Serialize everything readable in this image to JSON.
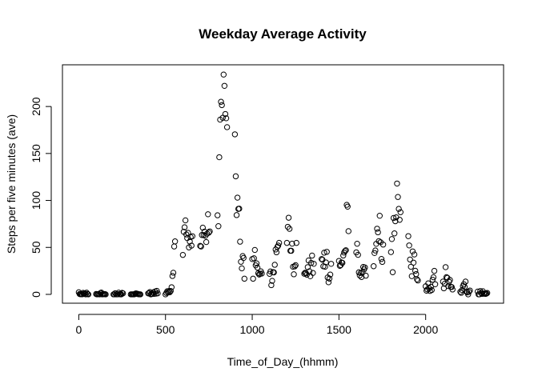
{
  "chart_data": {
    "type": "scatter",
    "title": "Weekday Average Activity",
    "xlabel": "Time_of_Day_(hhmm)",
    "ylabel": "Steps per five minutes (ave)",
    "xlim": [
      -94.2,
      2449.2
    ],
    "ylim": [
      -9.4,
      244.4
    ],
    "xticks": [
      0,
      500,
      1000,
      1500,
      2000
    ],
    "yticks": [
      0,
      50,
      100,
      150,
      200
    ],
    "grid": false,
    "legend": "none",
    "marker": "open-circle",
    "color": "#000000",
    "points": [
      [
        0,
        2.2
      ],
      [
        5,
        0.4
      ],
      [
        10,
        0.2
      ],
      [
        15,
        0.2
      ],
      [
        20,
        0.1
      ],
      [
        25,
        1.6
      ],
      [
        30,
        0.6
      ],
      [
        35,
        1.0
      ],
      [
        40,
        0.0
      ],
      [
        45,
        1.8
      ],
      [
        50,
        0.4
      ],
      [
        55,
        0.0
      ],
      [
        100,
        0.4
      ],
      [
        105,
        0.0
      ],
      [
        110,
        0.2
      ],
      [
        115,
        0.4
      ],
      [
        120,
        0.0
      ],
      [
        125,
        1.4
      ],
      [
        130,
        1.9
      ],
      [
        135,
        0.0
      ],
      [
        140,
        0.2
      ],
      [
        145,
        0.3
      ],
      [
        150,
        0.3
      ],
      [
        155,
        0.0
      ],
      [
        200,
        0.0
      ],
      [
        205,
        0.0
      ],
      [
        210,
        1.2
      ],
      [
        215,
        0.0
      ],
      [
        220,
        0.0
      ],
      [
        225,
        0.1
      ],
      [
        230,
        1.8
      ],
      [
        235,
        0.3
      ],
      [
        240,
        0.0
      ],
      [
        245,
        0.0
      ],
      [
        250,
        1.6
      ],
      [
        255,
        1.1
      ],
      [
        300,
        0.0
      ],
      [
        305,
        0.0
      ],
      [
        310,
        0.0
      ],
      [
        315,
        0.0
      ],
      [
        320,
        0.0
      ],
      [
        325,
        0.7
      ],
      [
        330,
        1.1
      ],
      [
        335,
        0.6
      ],
      [
        340,
        0.5
      ],
      [
        345,
        0.1
      ],
      [
        350,
        0.0
      ],
      [
        355,
        0.0
      ],
      [
        400,
        1.0
      ],
      [
        405,
        1.4
      ],
      [
        410,
        2.5
      ],
      [
        415,
        0.0
      ],
      [
        420,
        0.4
      ],
      [
        425,
        0.5
      ],
      [
        430,
        2.2
      ],
      [
        435,
        0.6
      ],
      [
        440,
        3.1
      ],
      [
        445,
        0.8
      ],
      [
        450,
        3.7
      ],
      [
        455,
        1.1
      ],
      [
        500,
        0.0
      ],
      [
        505,
        1.6
      ],
      [
        510,
        3.3
      ],
      [
        515,
        2.0
      ],
      [
        520,
        3.6
      ],
      [
        525,
        2.3
      ],
      [
        530,
        3.6
      ],
      [
        535,
        7.6
      ],
      [
        540,
        19.6
      ],
      [
        545,
        23.0
      ],
      [
        550,
        51.0
      ],
      [
        555,
        56.4
      ],
      [
        600,
        42.0
      ],
      [
        605,
        66.6
      ],
      [
        610,
        71.4
      ],
      [
        615,
        78.8
      ],
      [
        620,
        63.8
      ],
      [
        625,
        59.9
      ],
      [
        630,
        65.5
      ],
      [
        635,
        50.0
      ],
      [
        640,
        56.3
      ],
      [
        645,
        61.0
      ],
      [
        650,
        51.9
      ],
      [
        655,
        61.9
      ],
      [
        700,
        51.6
      ],
      [
        705,
        51.0
      ],
      [
        710,
        63.2
      ],
      [
        715,
        71.0
      ],
      [
        720,
        63.1
      ],
      [
        725,
        66.8
      ],
      [
        730,
        62.3
      ],
      [
        735,
        55.7
      ],
      [
        740,
        64.6
      ],
      [
        745,
        85.3
      ],
      [
        750,
        65.8
      ],
      [
        755,
        67.0
      ],
      [
        800,
        84.2
      ],
      [
        805,
        72.6
      ],
      [
        810,
        146.0
      ],
      [
        815,
        186.0
      ],
      [
        820,
        205.0
      ],
      [
        825,
        201.5
      ],
      [
        830,
        188.0
      ],
      [
        835,
        234.0
      ],
      [
        840,
        222.0
      ],
      [
        845,
        192.0
      ],
      [
        850,
        187.5
      ],
      [
        855,
        178.0
      ],
      [
        900,
        170.4
      ],
      [
        905,
        125.7
      ],
      [
        910,
        84.4
      ],
      [
        915,
        103.0
      ],
      [
        920,
        91.0
      ],
      [
        925,
        91.2
      ],
      [
        930,
        56.1
      ],
      [
        935,
        34.7
      ],
      [
        940,
        27.7
      ],
      [
        945,
        40.8
      ],
      [
        950,
        38.8
      ],
      [
        955,
        16.7
      ],
      [
        1000,
        37.6
      ],
      [
        1005,
        16.7
      ],
      [
        1010,
        38.4
      ],
      [
        1015,
        47.3
      ],
      [
        1020,
        30.9
      ],
      [
        1025,
        33.0
      ],
      [
        1030,
        28.5
      ],
      [
        1035,
        22.5
      ],
      [
        1040,
        21.1
      ],
      [
        1045,
        21.9
      ],
      [
        1050,
        24.5
      ],
      [
        1055,
        22.2
      ],
      [
        1100,
        21.9
      ],
      [
        1105,
        24.4
      ],
      [
        1110,
        9.8
      ],
      [
        1115,
        14.4
      ],
      [
        1120,
        23.6
      ],
      [
        1125,
        23.4
      ],
      [
        1130,
        31.5
      ],
      [
        1135,
        47.8
      ],
      [
        1140,
        44.8
      ],
      [
        1145,
        50.5
      ],
      [
        1150,
        52.0
      ],
      [
        1155,
        54.8
      ],
      [
        1200,
        54.8
      ],
      [
        1205,
        71.9
      ],
      [
        1210,
        81.6
      ],
      [
        1215,
        69.8
      ],
      [
        1220,
        46.4
      ],
      [
        1225,
        46.4
      ],
      [
        1230,
        54.0
      ],
      [
        1235,
        29.4
      ],
      [
        1240,
        21.4
      ],
      [
        1245,
        29.8
      ],
      [
        1250,
        31.1
      ],
      [
        1255,
        54.8
      ],
      [
        1300,
        22.0
      ],
      [
        1305,
        23.0
      ],
      [
        1310,
        22.4
      ],
      [
        1315,
        21.0
      ],
      [
        1320,
        29.0
      ],
      [
        1325,
        36.1
      ],
      [
        1330,
        24.6
      ],
      [
        1335,
        19.3
      ],
      [
        1340,
        33.5
      ],
      [
        1345,
        41.3
      ],
      [
        1350,
        22.8
      ],
      [
        1355,
        32.5
      ],
      [
        1400,
        37.6
      ],
      [
        1405,
        36.9
      ],
      [
        1410,
        29.9
      ],
      [
        1415,
        44.4
      ],
      [
        1420,
        29.4
      ],
      [
        1425,
        34.0
      ],
      [
        1430,
        45.3
      ],
      [
        1435,
        18.0
      ],
      [
        1440,
        12.9
      ],
      [
        1445,
        16.8
      ],
      [
        1450,
        21.1
      ],
      [
        1455,
        32.5
      ],
      [
        1500,
        35.6
      ],
      [
        1505,
        30.4
      ],
      [
        1510,
        31.2
      ],
      [
        1515,
        34.0
      ],
      [
        1520,
        33.5
      ],
      [
        1525,
        41.4
      ],
      [
        1530,
        44.5
      ],
      [
        1535,
        46.2
      ],
      [
        1540,
        47.0
      ],
      [
        1545,
        95.3
      ],
      [
        1550,
        93.4
      ],
      [
        1555,
        67.3
      ],
      [
        1600,
        44.7
      ],
      [
        1605,
        53.9
      ],
      [
        1610,
        42.1
      ],
      [
        1615,
        23.5
      ],
      [
        1620,
        20.2
      ],
      [
        1625,
        22.8
      ],
      [
        1630,
        18.5
      ],
      [
        1635,
        23.2
      ],
      [
        1640,
        29.2
      ],
      [
        1645,
        26.6
      ],
      [
        1650,
        28.6
      ],
      [
        1655,
        19.9
      ],
      [
        1700,
        30.0
      ],
      [
        1705,
        44.0
      ],
      [
        1710,
        46.7
      ],
      [
        1715,
        53.8
      ],
      [
        1720,
        69.9
      ],
      [
        1725,
        66.1
      ],
      [
        1730,
        56.7
      ],
      [
        1735,
        83.7
      ],
      [
        1740,
        55.5
      ],
      [
        1745,
        37.7
      ],
      [
        1750,
        34.6
      ],
      [
        1755,
        53.0
      ],
      [
        1800,
        45.0
      ],
      [
        1805,
        58.9
      ],
      [
        1810,
        23.6
      ],
      [
        1815,
        81.3
      ],
      [
        1820,
        64.9
      ],
      [
        1825,
        77.9
      ],
      [
        1830,
        82.0
      ],
      [
        1835,
        118.0
      ],
      [
        1840,
        103.7
      ],
      [
        1845,
        91.0
      ],
      [
        1850,
        79.4
      ],
      [
        1855,
        87.5
      ],
      [
        1900,
        62.0
      ],
      [
        1905,
        52.1
      ],
      [
        1910,
        37.1
      ],
      [
        1915,
        29.4
      ],
      [
        1920,
        19.4
      ],
      [
        1925,
        45.7
      ],
      [
        1930,
        33.8
      ],
      [
        1935,
        42.5
      ],
      [
        1940,
        25.1
      ],
      [
        1945,
        21.6
      ],
      [
        1950,
        16.0
      ],
      [
        1955,
        14.8
      ],
      [
        2000,
        8.6
      ],
      [
        2005,
        3.9
      ],
      [
        2010,
        5.3
      ],
      [
        2015,
        11.7
      ],
      [
        2020,
        6.4
      ],
      [
        2025,
        3.7
      ],
      [
        2030,
        8.0
      ],
      [
        2035,
        4.6
      ],
      [
        2040,
        15.6
      ],
      [
        2045,
        18.2
      ],
      [
        2050,
        25.0
      ],
      [
        2055,
        10.8
      ],
      [
        2100,
        13.6
      ],
      [
        2105,
        6.5
      ],
      [
        2110,
        11.3
      ],
      [
        2115,
        29.0
      ],
      [
        2120,
        18.3
      ],
      [
        2125,
        17.6
      ],
      [
        2130,
        8.8
      ],
      [
        2135,
        13.5
      ],
      [
        2140,
        15.3
      ],
      [
        2145,
        8.1
      ],
      [
        2150,
        7.8
      ],
      [
        2155,
        5.2
      ],
      [
        2200,
        2.7
      ],
      [
        2205,
        1.7
      ],
      [
        2210,
        4.6
      ],
      [
        2215,
        8.7
      ],
      [
        2220,
        10.8
      ],
      [
        2225,
        7.9
      ],
      [
        2230,
        13.6
      ],
      [
        2235,
        3.0
      ],
      [
        2240,
        2.1
      ],
      [
        2245,
        0.0
      ],
      [
        2250,
        2.7
      ],
      [
        2255,
        4.1
      ],
      [
        2300,
        3.0
      ],
      [
        2305,
        0.0
      ],
      [
        2310,
        0.0
      ],
      [
        2315,
        3.5
      ],
      [
        2320,
        1.5
      ],
      [
        2325,
        0.5
      ],
      [
        2330,
        3.3
      ],
      [
        2335,
        0.7
      ],
      [
        2340,
        1.1
      ],
      [
        2345,
        0.5
      ],
      [
        2350,
        0.8
      ],
      [
        2355,
        1.5
      ]
    ]
  }
}
